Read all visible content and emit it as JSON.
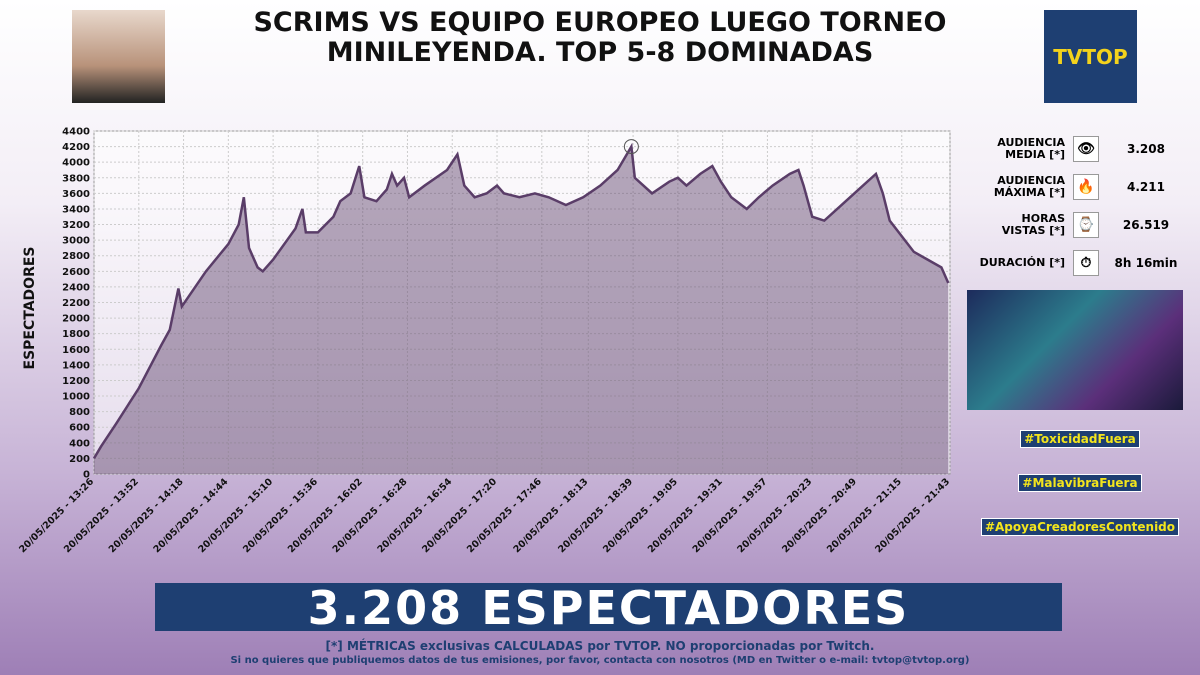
{
  "header": {
    "title_line1": "SCRIMS VS EQUIPO EUROPEO LUEGO TORNEO",
    "title_line2": "MINILEYENDA. TOP 5-8 DOMINADAS",
    "logo": "TVTOP"
  },
  "chart_data": {
    "type": "area",
    "y_label": "ESPECTADORES",
    "series": [
      {
        "name": "Espectadores",
        "color": "#5a3d68",
        "x": [
          "20/05/2025 - 13:26",
          "20/05/2025 - 13:30",
          "20/05/2025 - 13:39",
          "20/05/2025 - 13:52",
          "20/05/2025 - 14:05",
          "20/05/2025 - 14:10",
          "20/05/2025 - 14:15",
          "20/05/2025 - 14:17",
          "20/05/2025 - 14:31",
          "20/05/2025 - 14:44",
          "20/05/2025 - 14:50",
          "20/05/2025 - 14:53",
          "20/05/2025 - 14:56",
          "20/05/2025 - 15:01",
          "20/05/2025 - 15:04",
          "20/05/2025 - 15:10",
          "20/05/2025 - 15:23",
          "20/05/2025 - 15:27",
          "20/05/2025 - 15:29",
          "20/05/2025 - 15:36",
          "20/05/2025 - 15:45",
          "20/05/2025 - 15:49",
          "20/05/2025 - 15:55",
          "20/05/2025 - 16:00",
          "20/05/2025 - 16:03",
          "20/05/2025 - 16:10",
          "20/05/2025 - 16:16",
          "20/05/2025 - 16:19",
          "20/05/2025 - 16:22",
          "20/05/2025 - 16:26",
          "20/05/2025 - 16:29",
          "20/05/2025 - 16:38",
          "20/05/2025 - 16:51",
          "20/05/2025 - 16:57",
          "20/05/2025 - 17:01",
          "20/05/2025 - 17:07",
          "20/05/2025 - 17:14",
          "20/05/2025 - 17:20",
          "20/05/2025 - 17:24",
          "20/05/2025 - 17:33",
          "20/05/2025 - 17:42",
          "20/05/2025 - 17:50",
          "20/05/2025 - 18:00",
          "20/05/2025 - 18:10",
          "20/05/2025 - 18:20",
          "20/05/2025 - 18:30",
          "20/05/2025 - 18:38",
          "20/05/2025 - 18:40",
          "20/05/2025 - 18:50",
          "20/05/2025 - 19:00",
          "20/05/2025 - 19:05",
          "20/05/2025 - 19:10",
          "20/05/2025 - 19:18",
          "20/05/2025 - 19:25",
          "20/05/2025 - 19:30",
          "20/05/2025 - 19:36",
          "20/05/2025 - 19:45",
          "20/05/2025 - 19:52",
          "20/05/2025 - 20:00",
          "20/05/2025 - 20:10",
          "20/05/2025 - 20:15",
          "20/05/2025 - 20:18",
          "20/05/2025 - 20:23",
          "20/05/2025 - 20:30",
          "20/05/2025 - 20:40",
          "20/05/2025 - 20:50",
          "20/05/2025 - 21:00",
          "20/05/2025 - 21:04",
          "20/05/2025 - 21:08",
          "20/05/2025 - 21:15",
          "20/05/2025 - 21:22",
          "20/05/2025 - 21:30",
          "20/05/2025 - 21:38",
          "20/05/2025 - 21:42"
        ],
        "values": [
          200,
          350,
          650,
          1100,
          1650,
          1850,
          2380,
          2150,
          2600,
          2950,
          3200,
          3550,
          2900,
          2650,
          2600,
          2750,
          3150,
          3400,
          3100,
          3100,
          3300,
          3500,
          3600,
          3950,
          3550,
          3500,
          3650,
          3850,
          3700,
          3800,
          3550,
          3700,
          3900,
          4100,
          3700,
          3550,
          3600,
          3700,
          3600,
          3550,
          3600,
          3550,
          3450,
          3550,
          3700,
          3900,
          4200,
          3800,
          3600,
          3750,
          3800,
          3700,
          3850,
          3950,
          3750,
          3550,
          3400,
          3550,
          3700,
          3850,
          3900,
          3700,
          3300,
          3250,
          3450,
          3650,
          3850,
          3600,
          3250,
          3050,
          2850,
          2750,
          2650,
          2450
        ]
      }
    ],
    "xlim": [
      "20/05/2025 - 13:26",
      "20/05/2025 - 21:43"
    ],
    "xticks": [
      "20/05/2025 - 13:26",
      "20/05/2025 - 13:52",
      "20/05/2025 - 14:18",
      "20/05/2025 - 14:44",
      "20/05/2025 - 15:10",
      "20/05/2025 - 15:36",
      "20/05/2025 - 16:02",
      "20/05/2025 - 16:28",
      "20/05/2025 - 16:54",
      "20/05/2025 - 17:20",
      "20/05/2025 - 17:46",
      "20/05/2025 - 18:13",
      "20/05/2025 - 18:39",
      "20/05/2025 - 19:05",
      "20/05/2025 - 19:31",
      "20/05/2025 - 19:57",
      "20/05/2025 - 20:23",
      "20/05/2025 - 20:49",
      "20/05/2025 - 21:15",
      "20/05/2025 - 21:43"
    ],
    "ylim": [
      0,
      4400
    ],
    "yticks": [
      0,
      200,
      400,
      600,
      800,
      1000,
      1200,
      1400,
      1600,
      1800,
      2000,
      2200,
      2400,
      2600,
      2800,
      3000,
      3200,
      3400,
      3600,
      3800,
      4000,
      4200,
      4400
    ],
    "grid": true
  },
  "stats": [
    {
      "label": "AUDIENCIA MEDIA [*]",
      "icon": "👁",
      "value": "3.208"
    },
    {
      "label": "AUDIENCIA MÁXIMA [*]",
      "icon": "🔥",
      "value": "4.211"
    },
    {
      "label": "HORAS VISTAS [*]",
      "icon": "⌚",
      "value": "26.519"
    },
    {
      "label": "DURACIÓN [*]",
      "icon": "⏱",
      "value": "8h 16min"
    }
  ],
  "hashtags": [
    "#ToxicidadFuera",
    "#MalavibraFuera",
    "#ApoyaCreadoresContenido"
  ],
  "banner": "3.208 ESPECTADORES",
  "footer": {
    "line1": "[*] MÉTRICAS exclusivas CALCULADAS por TVTOP. NO proporcionadas por Twitch.",
    "line2": "Si no quieres que publiquemos datos de tus emisiones, por favor, contacta con nosotros (MD en Twitter o e-mail: tvtop@tvtop.org)"
  }
}
